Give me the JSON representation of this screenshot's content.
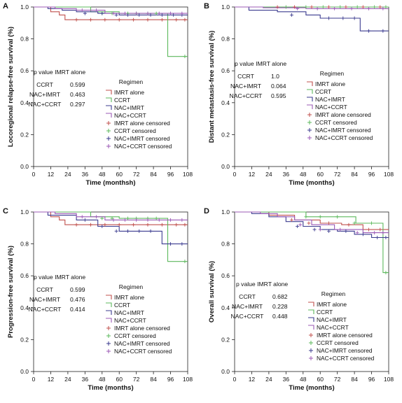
{
  "figure": {
    "panels": [
      {
        "letter": "A",
        "ylabel": "Locoregional relapse-free survival (%)",
        "xlabel": "Time (monthsh)",
        "annotation_title": "p value IMRT alone",
        "pvalues": [
          {
            "label": "CCRT",
            "value": "0.599"
          },
          {
            "label": "NAC+IMRT",
            "value": "0.463"
          },
          {
            "label": "NAC+CCRT",
            "value": "0.297"
          }
        ]
      },
      {
        "letter": "B",
        "ylabel": "Distant metastasis-free survival (%)",
        "xlabel": "Time (months)",
        "annotation_title": "p value IMRT alone",
        "pvalues": [
          {
            "label": "CCRT",
            "value": "1.0"
          },
          {
            "label": "NAC+IMRT",
            "value": "0.064"
          },
          {
            "label": "NAC+CCRT",
            "value": "0.595"
          }
        ]
      },
      {
        "letter": "C",
        "ylabel": "Progression-free survival (%)",
        "xlabel": "Time (months)",
        "annotation_title": "p value IMRT alone",
        "pvalues": [
          {
            "label": "CCRT",
            "value": "0.599"
          },
          {
            "label": "NAC+IMRT",
            "value": "0.476"
          },
          {
            "label": "NAC+CCRT",
            "value": "0.414"
          }
        ]
      },
      {
        "letter": "D",
        "ylabel": "Overall survival (%)",
        "xlabel": "Time (months)",
        "annotation_title": "p value IMRT alone",
        "pvalues": [
          {
            "label": "CCRT",
            "value": "0.682"
          },
          {
            "label": "NAC+IMRT",
            "value": "0.228"
          },
          {
            "label": "NAC+CCRT",
            "value": "0.448"
          }
        ]
      }
    ],
    "legend": {
      "title": "Regimen",
      "entries": [
        {
          "label": "IMRT alone",
          "color": "#c0504d",
          "marker": "line"
        },
        {
          "label": "CCRT",
          "color": "#5cb85c",
          "marker": "line"
        },
        {
          "label": "NAC+IMRT",
          "color": "#3b3b8f",
          "marker": "line"
        },
        {
          "label": "NAC+CCRT",
          "color": "#9b59b6",
          "marker": "line"
        },
        {
          "label": "IMRT alone censored",
          "color": "#c0504d",
          "marker": "plus"
        },
        {
          "label": "CCRT censored",
          "color": "#5cb85c",
          "marker": "plus"
        },
        {
          "label": "NAC+IMRT censored",
          "color": "#3b3b8f",
          "marker": "plus"
        },
        {
          "label": "NAC+CCRT censored",
          "color": "#9b59b6",
          "marker": "plus"
        }
      ]
    }
  },
  "chart_data": [
    {
      "type": "line",
      "panel": "A",
      "xlabel": "Time (monthsh)",
      "ylabel": "Locoregional relapse-free survival (%)",
      "xlim": [
        0,
        108
      ],
      "ylim": [
        0.0,
        1.0
      ],
      "xticks": [
        "0",
        "12",
        "24",
        "36",
        "48",
        "60",
        "72",
        "84",
        "96",
        "108"
      ],
      "yticks": [
        "0.0",
        "0.2",
        "0.4",
        "0.6",
        "0.8",
        "1.0"
      ],
      "step": true,
      "series": [
        {
          "name": "IMRT alone",
          "x": [
            0,
            12,
            18,
            22,
            108
          ],
          "y": [
            1.0,
            0.97,
            0.95,
            0.92,
            0.92
          ]
        },
        {
          "name": "CCRT",
          "x": [
            0,
            40,
            60,
            92,
            94,
            108
          ],
          "y": [
            1.0,
            0.97,
            0.96,
            0.96,
            0.69,
            0.69
          ]
        },
        {
          "name": "NAC+IMRT",
          "x": [
            0,
            10,
            20,
            30,
            45,
            60,
            108
          ],
          "y": [
            1.0,
            0.99,
            0.98,
            0.97,
            0.96,
            0.95,
            0.95
          ]
        },
        {
          "name": "NAC+CCRT",
          "x": [
            0,
            15,
            30,
            50,
            108
          ],
          "y": [
            1.0,
            0.99,
            0.98,
            0.96,
            0.96
          ]
        }
      ],
      "censored": [
        {
          "name": "IMRT alone censored",
          "x": [
            30,
            40,
            50,
            60,
            70,
            80,
            90,
            100,
            106
          ],
          "y": [
            0.92,
            0.92,
            0.92,
            0.92,
            0.92,
            0.92,
            0.92,
            0.92,
            0.92
          ]
        },
        {
          "name": "CCRT censored",
          "x": [
            48,
            55,
            66,
            72,
            80,
            86,
            106
          ],
          "y": [
            0.96,
            0.96,
            0.96,
            0.96,
            0.96,
            0.96,
            0.69
          ]
        },
        {
          "name": "NAC+IMRT censored",
          "x": [
            36,
            48,
            58,
            66,
            74,
            82,
            90,
            98,
            104
          ],
          "y": [
            0.96,
            0.96,
            0.95,
            0.95,
            0.95,
            0.95,
            0.95,
            0.95,
            0.95
          ]
        },
        {
          "name": "NAC+CCRT censored",
          "x": [
            34,
            44,
            56,
            64,
            72,
            80,
            88,
            96,
            104
          ],
          "y": [
            0.98,
            0.98,
            0.96,
            0.96,
            0.96,
            0.96,
            0.96,
            0.96,
            0.96
          ]
        }
      ]
    },
    {
      "type": "line",
      "panel": "B",
      "xlabel": "Time (months)",
      "ylabel": "Distant metastasis-free survival (%)",
      "xlim": [
        0,
        108
      ],
      "ylim": [
        0.0,
        1.0
      ],
      "xticks": [
        "0",
        "12",
        "24",
        "36",
        "48",
        "60",
        "72",
        "84",
        "96",
        "108"
      ],
      "yticks": [
        "0.0",
        "0.2",
        "0.4",
        "0.6",
        "0.8",
        "1.0"
      ],
      "step": true,
      "series": [
        {
          "name": "IMRT alone",
          "x": [
            0,
            108
          ],
          "y": [
            1.0,
            1.0
          ]
        },
        {
          "name": "CCRT",
          "x": [
            0,
            108
          ],
          "y": [
            1.0,
            1.0
          ]
        },
        {
          "name": "NAC+IMRT",
          "x": [
            0,
            10,
            30,
            50,
            60,
            88,
            108
          ],
          "y": [
            1.0,
            0.98,
            0.97,
            0.95,
            0.93,
            0.85,
            0.85
          ]
        },
        {
          "name": "NAC+CCRT",
          "x": [
            0,
            20,
            50,
            108
          ],
          "y": [
            1.0,
            0.995,
            0.99,
            0.99
          ]
        }
      ],
      "censored": [
        {
          "name": "IMRT alone censored",
          "x": [
            30,
            42,
            54,
            66,
            78,
            90,
            102
          ],
          "y": [
            1.0,
            1.0,
            1.0,
            1.0,
            1.0,
            1.0,
            1.0
          ]
        },
        {
          "name": "CCRT censored",
          "x": [
            36,
            50,
            62,
            74,
            86,
            98,
            106
          ],
          "y": [
            1.0,
            1.0,
            1.0,
            1.0,
            1.0,
            1.0,
            1.0
          ]
        },
        {
          "name": "NAC+IMRT censored",
          "x": [
            40,
            66,
            76,
            84,
            94,
            104
          ],
          "y": [
            0.95,
            0.93,
            0.93,
            0.93,
            0.85,
            0.85
          ]
        },
        {
          "name": "NAC+CCRT censored",
          "x": [
            44,
            58,
            70,
            82,
            94,
            104
          ],
          "y": [
            0.99,
            0.99,
            0.99,
            0.99,
            0.99,
            0.99
          ]
        }
      ]
    },
    {
      "type": "line",
      "panel": "C",
      "xlabel": "Time (months)",
      "ylabel": "Progression-free survival (%)",
      "xlim": [
        0,
        108
      ],
      "ylim": [
        0.0,
        1.0
      ],
      "xticks": [
        "0",
        "12",
        "24",
        "36",
        "48",
        "60",
        "72",
        "84",
        "96",
        "108"
      ],
      "yticks": [
        "0.0",
        "0.2",
        "0.4",
        "0.6",
        "0.8",
        "1.0"
      ],
      "step": true,
      "series": [
        {
          "name": "IMRT alone",
          "x": [
            0,
            12,
            18,
            22,
            108
          ],
          "y": [
            1.0,
            0.97,
            0.95,
            0.92,
            0.92
          ]
        },
        {
          "name": "CCRT",
          "x": [
            0,
            40,
            60,
            92,
            94,
            108
          ],
          "y": [
            1.0,
            0.97,
            0.96,
            0.96,
            0.69,
            0.69
          ]
        },
        {
          "name": "NAC+IMRT",
          "x": [
            0,
            10,
            30,
            45,
            60,
            90,
            108
          ],
          "y": [
            1.0,
            0.98,
            0.95,
            0.91,
            0.88,
            0.8,
            0.8
          ]
        },
        {
          "name": "NAC+CCRT",
          "x": [
            0,
            15,
            30,
            50,
            108
          ],
          "y": [
            1.0,
            0.99,
            0.97,
            0.95,
            0.95
          ]
        }
      ],
      "censored": [
        {
          "name": "IMRT alone censored",
          "x": [
            30,
            40,
            50,
            60,
            70,
            80,
            90,
            100,
            106
          ],
          "y": [
            0.92,
            0.92,
            0.92,
            0.92,
            0.92,
            0.92,
            0.92,
            0.92,
            0.92
          ]
        },
        {
          "name": "CCRT censored",
          "x": [
            48,
            55,
            66,
            72,
            80,
            86,
            106
          ],
          "y": [
            0.96,
            0.96,
            0.96,
            0.96,
            0.96,
            0.96,
            0.69
          ]
        },
        {
          "name": "NAC+IMRT censored",
          "x": [
            36,
            48,
            58,
            66,
            74,
            82,
            96,
            104
          ],
          "y": [
            0.95,
            0.91,
            0.88,
            0.88,
            0.88,
            0.88,
            0.8,
            0.8
          ]
        },
        {
          "name": "NAC+CCRT censored",
          "x": [
            34,
            44,
            56,
            64,
            72,
            80,
            88,
            96,
            104
          ],
          "y": [
            0.97,
            0.97,
            0.95,
            0.95,
            0.95,
            0.95,
            0.95,
            0.95,
            0.95
          ]
        }
      ]
    },
    {
      "type": "line",
      "panel": "D",
      "xlabel": "Time (months)",
      "ylabel": "Overall survival (%)",
      "xlim": [
        0,
        108
      ],
      "ylim": [
        0.0,
        1.0
      ],
      "xticks": [
        "0",
        "12",
        "24",
        "36",
        "48",
        "60",
        "72",
        "84",
        "96",
        "108"
      ],
      "yticks": [
        "0.0",
        "0.2",
        "0.4",
        "0.6",
        "0.8",
        "1.0"
      ],
      "step": true,
      "series": [
        {
          "name": "IMRT alone",
          "x": [
            0,
            24,
            42,
            60,
            75,
            90,
            108
          ],
          "y": [
            1.0,
            0.98,
            0.95,
            0.93,
            0.92,
            0.89,
            0.89
          ]
        },
        {
          "name": "CCRT",
          "x": [
            0,
            50,
            85,
            100,
            104,
            108
          ],
          "y": [
            1.0,
            0.97,
            0.93,
            0.93,
            0.62,
            0.62
          ]
        },
        {
          "name": "NAC+IMRT",
          "x": [
            0,
            12,
            24,
            36,
            48,
            60,
            72,
            84,
            96,
            108
          ],
          "y": [
            1.0,
            0.99,
            0.97,
            0.94,
            0.91,
            0.89,
            0.88,
            0.86,
            0.84,
            0.84
          ]
        },
        {
          "name": "NAC+CCRT",
          "x": [
            0,
            18,
            30,
            42,
            54,
            70,
            90,
            108
          ],
          "y": [
            1.0,
            0.99,
            0.97,
            0.95,
            0.92,
            0.89,
            0.87,
            0.87
          ]
        }
      ],
      "censored": [
        {
          "name": "IMRT alone censored",
          "x": [
            40,
            52,
            66,
            80,
            94,
            102
          ],
          "y": [
            0.95,
            0.93,
            0.93,
            0.92,
            0.89,
            0.89
          ]
        },
        {
          "name": "CCRT censored",
          "x": [
            50,
            60,
            72,
            84,
            96,
            106
          ],
          "y": [
            0.97,
            0.97,
            0.97,
            0.93,
            0.93,
            0.62
          ]
        },
        {
          "name": "NAC+IMRT censored",
          "x": [
            44,
            56,
            66,
            78,
            90,
            100,
            106
          ],
          "y": [
            0.91,
            0.89,
            0.88,
            0.88,
            0.86,
            0.84,
            0.84
          ]
        },
        {
          "name": "NAC+CCRT censored",
          "x": [
            46,
            60,
            74,
            86,
            98,
            104
          ],
          "y": [
            0.92,
            0.89,
            0.89,
            0.87,
            0.87,
            0.87
          ]
        }
      ]
    }
  ]
}
